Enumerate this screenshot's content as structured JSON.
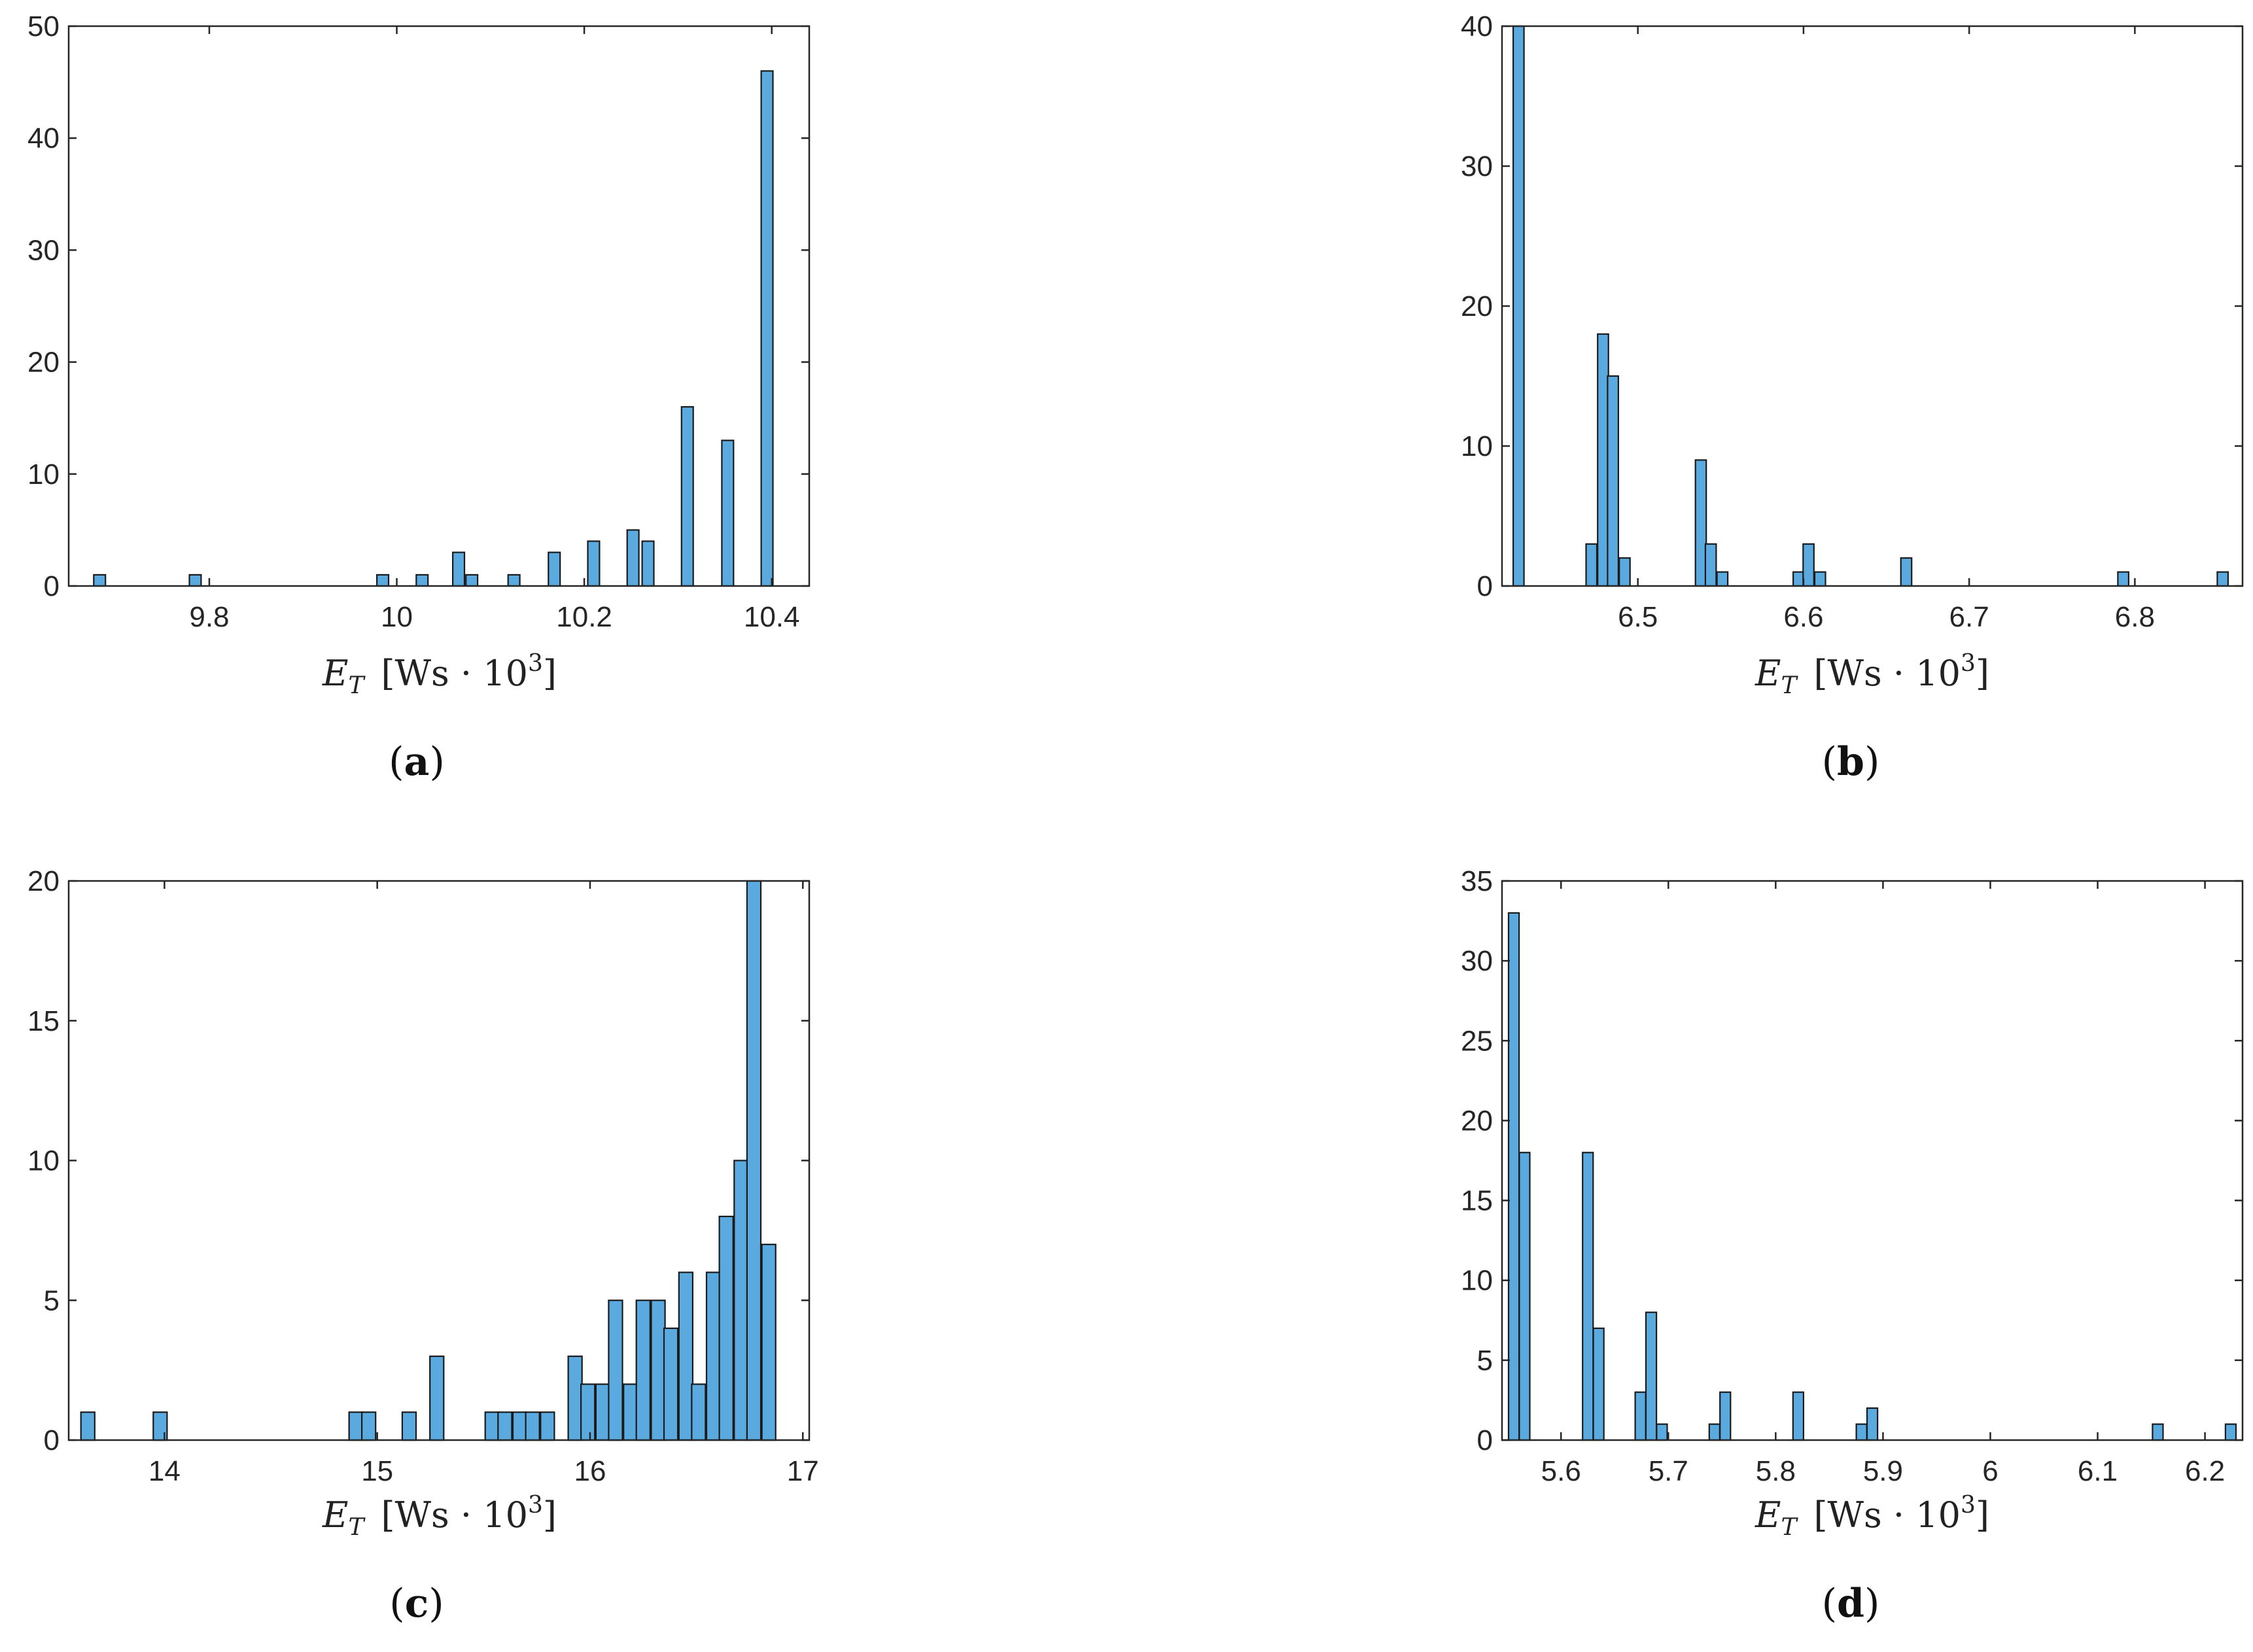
{
  "xlabel": {
    "e": "E",
    "sub": "T",
    "unit": "[Ws · 10",
    "exp": "3",
    "close": "]"
  },
  "bar_color": "#5aaae0",
  "chart_data": [
    {
      "type": "bar",
      "panel": "a",
      "xlabel": "E_T [Ws · 10^3]",
      "xlim": [
        9.65,
        10.44
      ],
      "ylim": [
        0,
        50
      ],
      "xticks": [
        9.8,
        10,
        10.2,
        10.4
      ],
      "xtick_labels": [
        "9.8",
        "10",
        "10.2",
        "10.4"
      ],
      "yticks": [
        0,
        10,
        20,
        30,
        40,
        50
      ],
      "bin_width": 0.0125,
      "bins": [
        {
          "x": 9.683,
          "y": 1
        },
        {
          "x": 9.785,
          "y": 1
        },
        {
          "x": 9.985,
          "y": 1
        },
        {
          "x": 10.027,
          "y": 1
        },
        {
          "x": 10.066,
          "y": 3
        },
        {
          "x": 10.08,
          "y": 1
        },
        {
          "x": 10.125,
          "y": 1
        },
        {
          "x": 10.168,
          "y": 3
        },
        {
          "x": 10.21,
          "y": 4
        },
        {
          "x": 10.252,
          "y": 5
        },
        {
          "x": 10.268,
          "y": 4
        },
        {
          "x": 10.31,
          "y": 16
        },
        {
          "x": 10.353,
          "y": 13
        },
        {
          "x": 10.395,
          "y": 46
        }
      ]
    },
    {
      "type": "bar",
      "panel": "b",
      "xlabel": "E_T [Ws · 10^3]",
      "xlim": [
        6.418,
        6.865
      ],
      "ylim": [
        0,
        40
      ],
      "xticks": [
        6.5,
        6.6,
        6.7,
        6.8
      ],
      "xtick_labels": [
        "6.5",
        "6.6",
        "6.7",
        "6.8"
      ],
      "yticks": [
        0,
        10,
        20,
        30,
        40
      ],
      "bin_width": 0.0065,
      "bins": [
        {
          "x": 6.428,
          "y": 40
        },
        {
          "x": 6.472,
          "y": 3
        },
        {
          "x": 6.479,
          "y": 18
        },
        {
          "x": 6.485,
          "y": 15
        },
        {
          "x": 6.492,
          "y": 2
        },
        {
          "x": 6.538,
          "y": 9
        },
        {
          "x": 6.544,
          "y": 3
        },
        {
          "x": 6.551,
          "y": 1
        },
        {
          "x": 6.597,
          "y": 1
        },
        {
          "x": 6.603,
          "y": 3
        },
        {
          "x": 6.61,
          "y": 1
        },
        {
          "x": 6.662,
          "y": 2
        },
        {
          "x": 6.793,
          "y": 1
        },
        {
          "x": 6.853,
          "y": 1
        }
      ]
    },
    {
      "type": "bar",
      "panel": "c",
      "xlabel": "E_T [Ws · 10^3]",
      "xlim": [
        13.55,
        17.03
      ],
      "ylim": [
        0,
        20
      ],
      "xticks": [
        14,
        15,
        16,
        17
      ],
      "xtick_labels": [
        "14",
        "15",
        "16",
        "17"
      ],
      "yticks": [
        0,
        5,
        10,
        15,
        20
      ],
      "bin_width": 0.065,
      "bins": [
        {
          "x": 13.64,
          "y": 1
        },
        {
          "x": 13.98,
          "y": 1
        },
        {
          "x": 14.9,
          "y": 1
        },
        {
          "x": 14.96,
          "y": 1
        },
        {
          "x": 15.15,
          "y": 1
        },
        {
          "x": 15.28,
          "y": 3
        },
        {
          "x": 15.54,
          "y": 1
        },
        {
          "x": 15.6,
          "y": 1
        },
        {
          "x": 15.67,
          "y": 1
        },
        {
          "x": 15.73,
          "y": 1
        },
        {
          "x": 15.8,
          "y": 1
        },
        {
          "x": 15.93,
          "y": 3
        },
        {
          "x": 15.99,
          "y": 2
        },
        {
          "x": 16.06,
          "y": 2
        },
        {
          "x": 16.12,
          "y": 5
        },
        {
          "x": 16.19,
          "y": 2
        },
        {
          "x": 16.25,
          "y": 5
        },
        {
          "x": 16.32,
          "y": 5
        },
        {
          "x": 16.38,
          "y": 4
        },
        {
          "x": 16.45,
          "y": 6
        },
        {
          "x": 16.51,
          "y": 2
        },
        {
          "x": 16.58,
          "y": 6
        },
        {
          "x": 16.64,
          "y": 8
        },
        {
          "x": 16.71,
          "y": 10
        },
        {
          "x": 16.77,
          "y": 20
        },
        {
          "x": 16.84,
          "y": 7
        }
      ]
    },
    {
      "type": "bar",
      "panel": "d",
      "xlabel": "E_T [Ws · 10^3]",
      "xlim": [
        5.545,
        6.235
      ],
      "ylim": [
        0,
        35
      ],
      "xticks": [
        5.6,
        5.7,
        5.8,
        5.9,
        6,
        6.1,
        6.2
      ],
      "xtick_labels": [
        "5.6",
        "5.7",
        "5.8",
        "5.9",
        "6",
        "6.1",
        "6.2"
      ],
      "yticks": [
        0,
        5,
        10,
        15,
        20,
        25,
        30,
        35
      ],
      "bin_width": 0.0098,
      "bins": [
        {
          "x": 5.556,
          "y": 33
        },
        {
          "x": 5.566,
          "y": 18
        },
        {
          "x": 5.625,
          "y": 18
        },
        {
          "x": 5.635,
          "y": 7
        },
        {
          "x": 5.674,
          "y": 3
        },
        {
          "x": 5.684,
          "y": 8
        },
        {
          "x": 5.694,
          "y": 1
        },
        {
          "x": 5.743,
          "y": 1
        },
        {
          "x": 5.753,
          "y": 3
        },
        {
          "x": 5.821,
          "y": 3
        },
        {
          "x": 5.88,
          "y": 1
        },
        {
          "x": 5.89,
          "y": 2
        },
        {
          "x": 6.156,
          "y": 1
        },
        {
          "x": 6.224,
          "y": 1
        }
      ]
    }
  ]
}
